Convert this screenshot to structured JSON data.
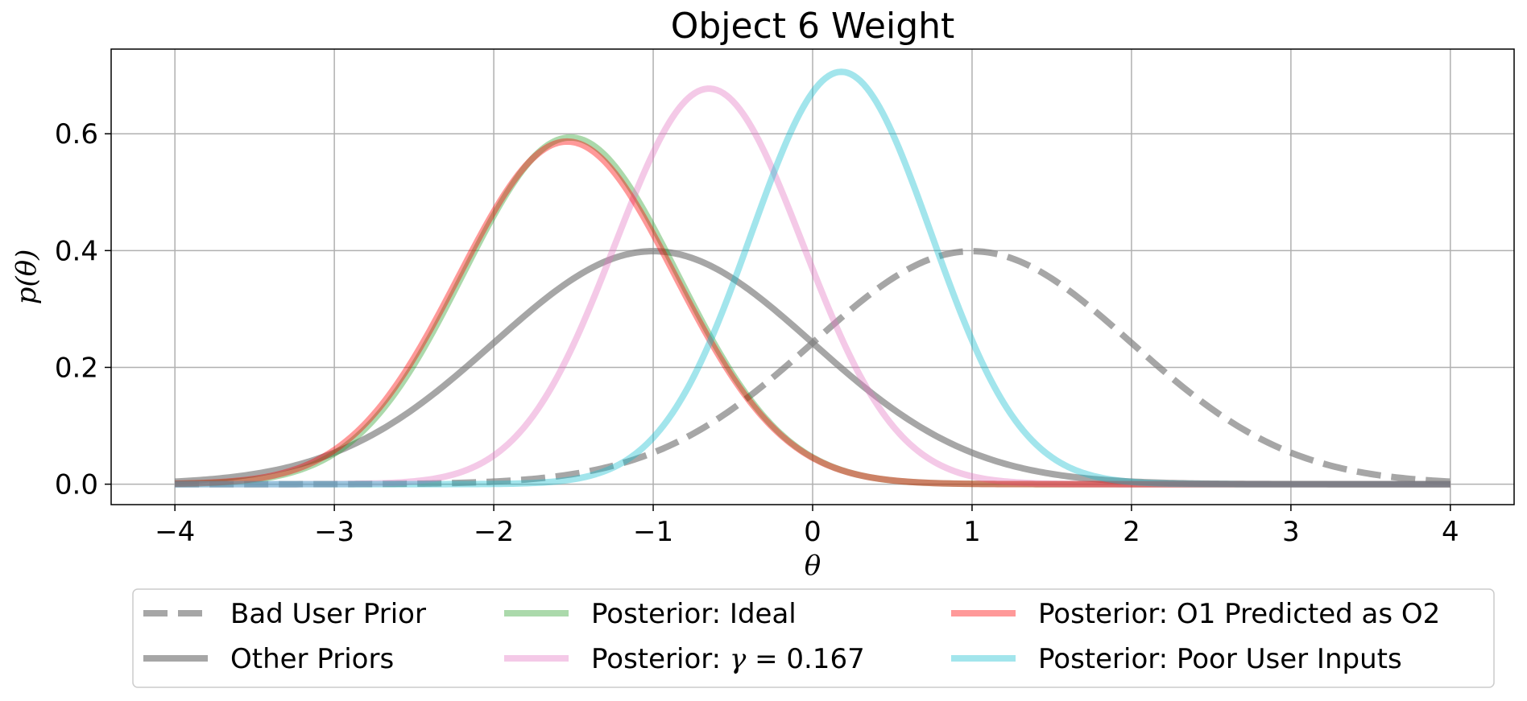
{
  "chart_data": {
    "type": "line",
    "title": "Object 6 Weight",
    "xlabel": "θ",
    "ylabel": "p(θ)",
    "xlim": [
      -4.4,
      4.4
    ],
    "ylim": [
      -0.035,
      0.745
    ],
    "xticks": [
      -4,
      -3,
      -2,
      -1,
      0,
      1,
      2,
      3,
      4
    ],
    "xtick_labels": [
      "−4",
      "−3",
      "−2",
      "−1",
      "0",
      "1",
      "2",
      "3",
      "4"
    ],
    "yticks": [
      0.0,
      0.2,
      0.4,
      0.6
    ],
    "ytick_labels": [
      "0.0",
      "0.2",
      "0.4",
      "0.6"
    ],
    "grid": true,
    "legend_position": "bottom-center",
    "x_range": [
      -4,
      4
    ],
    "series": [
      {
        "name": "Bad User Prior",
        "mean": 1.0,
        "std": 1.0,
        "color": "#808080",
        "style": "dashed"
      },
      {
        "name": "Other Priors",
        "mean": -1.0,
        "std": 1.0,
        "color": "#808080",
        "style": "solid"
      },
      {
        "name": "Posterior: Ideal",
        "mean": -1.52,
        "std": 0.672,
        "color": "#2ca02c",
        "style": "solid"
      },
      {
        "name": "Posterior: γ = 0.167",
        "mean": -0.65,
        "std": 0.589,
        "color": "#e377c2",
        "style": "solid"
      },
      {
        "name": "Posterior: O1 Predicted as O2",
        "mean": -1.54,
        "std": 0.68,
        "color": "#ff0000",
        "style": "solid"
      },
      {
        "name": "Posterior: Poor User Inputs",
        "mean": 0.18,
        "std": 0.565,
        "color": "#17becf",
        "style": "solid"
      }
    ],
    "legend_name_labels": {
      "gamma_prefix": "Posterior: ",
      "gamma_symbol": "γ",
      "gamma_suffix": " = 0.167"
    }
  }
}
